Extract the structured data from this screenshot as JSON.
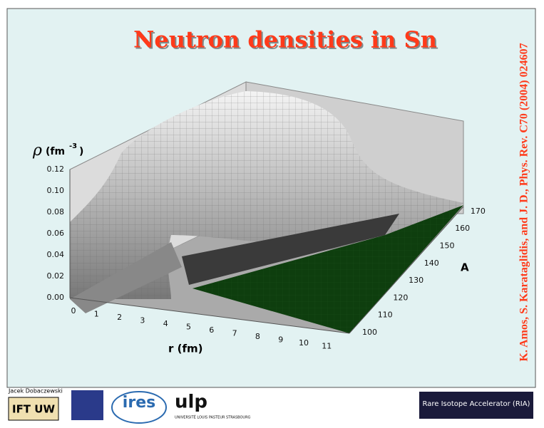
{
  "slide": {
    "title": "Neutron densities in Sn",
    "citation": "K. Amos, S. Karataglidis, and J. D., Phys. Rev. C70 (2004) 024607",
    "plot": {
      "z_label_symbol": "ρ",
      "z_label_unit": "(fm",
      "z_label_exp": "-3",
      "z_label_close": ")",
      "z_ticks": [
        "0.00",
        "0.02",
        "0.04",
        "0.06",
        "0.08",
        "0.10",
        "0.12"
      ],
      "r_label": "r (fm)",
      "r_ticks": [
        "0",
        "1",
        "2",
        "3",
        "4",
        "5",
        "6",
        "7",
        "8",
        "9",
        "10",
        "11"
      ],
      "a_label": "A",
      "a_ticks": [
        "100",
        "110",
        "120",
        "130",
        "140",
        "150",
        "160",
        "170"
      ]
    },
    "footer": {
      "author": "Jacek Dobaczewski",
      "logo1": "IFT UW",
      "logo2": "ires",
      "logo3": "ulp",
      "logo3_sub": "UNIVERSITÉ LOUIS PASTEUR STRASBOURG",
      "logo4": "Rare Isotope Accelerator (RIA)"
    }
  }
}
